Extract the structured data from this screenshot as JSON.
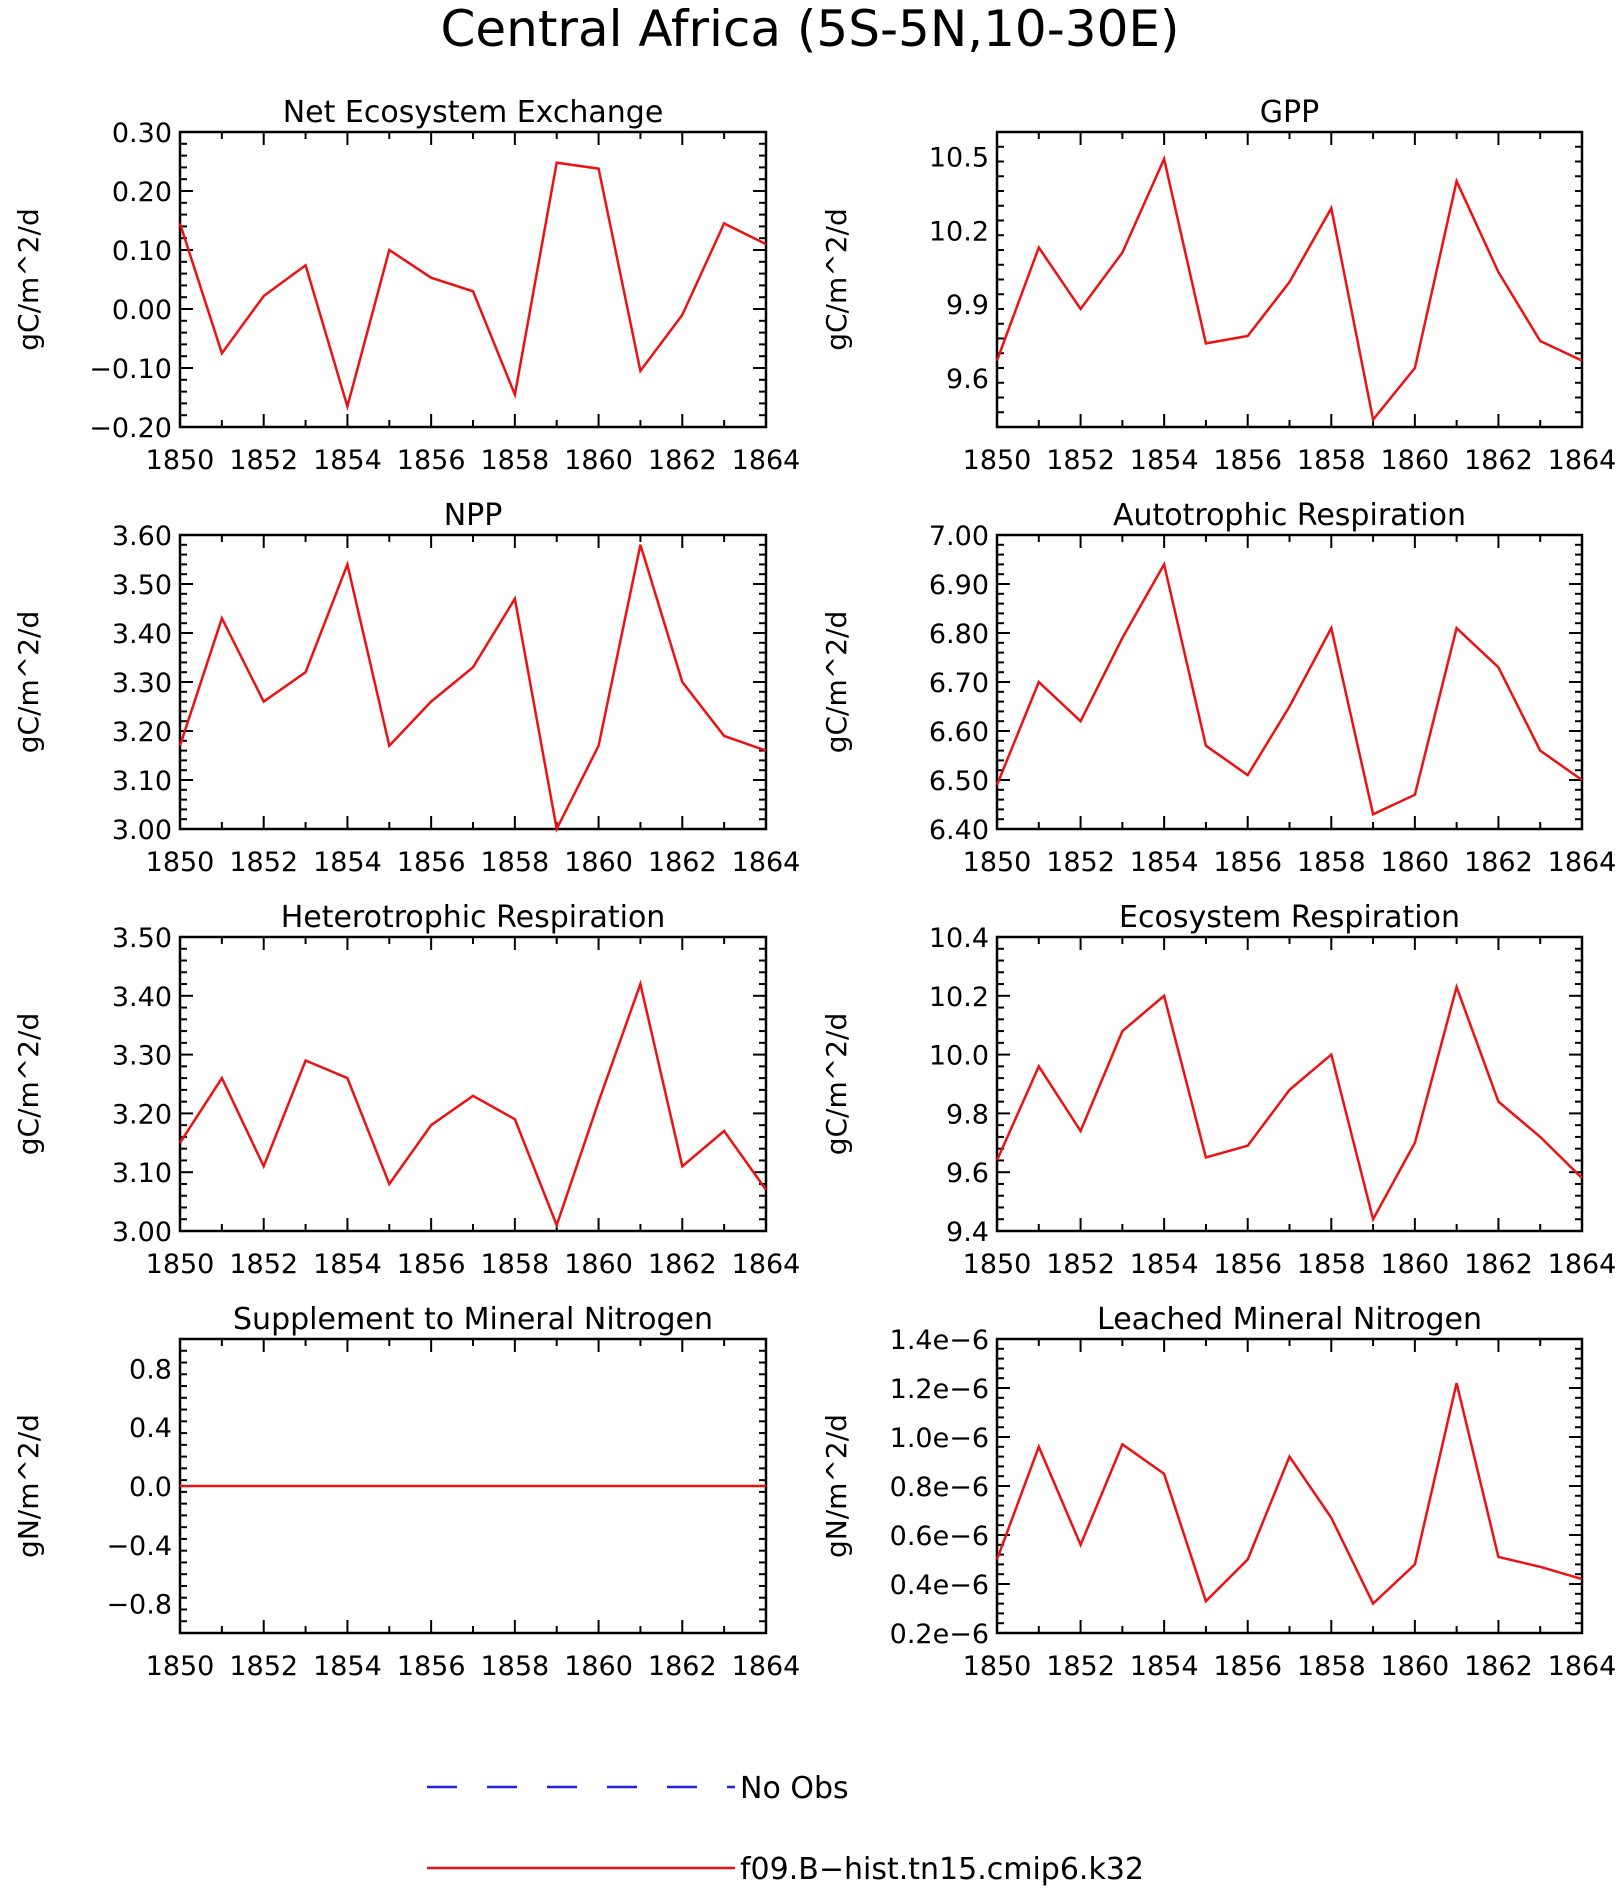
{
  "title": "Central Africa (5S-5N,10-30E)",
  "legend": [
    {
      "label": "No Obs",
      "color": "#2222dd",
      "dash": true
    },
    {
      "label": "f09.B-hist.tn15.cmip6.k32",
      "color": "#ee1111",
      "dash": false
    }
  ],
  "chart_data": [
    {
      "type": "line",
      "title": "Net Ecosystem Exchange",
      "ylabel": "gC/m^2/d",
      "xlim": [
        1850,
        1864
      ],
      "ylim": [
        -0.2,
        0.3
      ],
      "xticks": [
        "1850",
        "1852",
        "1854",
        "1856",
        "1858",
        "1860",
        "1862",
        "1864"
      ],
      "yticks": [
        "-0.20",
        "-0.10",
        "0.00",
        "0.10",
        "0.20",
        "0.30"
      ],
      "yticks_num": [
        -0.2,
        -0.1,
        0,
        0.1,
        0.2,
        0.3
      ],
      "x": [
        1850,
        1851,
        1852,
        1853,
        1854,
        1855,
        1856,
        1857,
        1858,
        1859,
        1860,
        1861,
        1862,
        1863,
        1864
      ],
      "series": [
        {
          "name": "f09.B-hist.tn15.cmip6.k32",
          "values": [
            0.145,
            -0.075,
            0.022,
            0.074,
            -0.165,
            0.1,
            0.053,
            0.03,
            -0.145,
            0.248,
            0.238,
            -0.105,
            -0.01,
            0.145,
            0.11
          ]
        }
      ]
    },
    {
      "type": "line",
      "title": "GPP",
      "ylabel": "gC/m^2/d",
      "xlim": [
        1850,
        1864
      ],
      "ylim": [
        9.4,
        10.6
      ],
      "xticks": [
        "1850",
        "1852",
        "1854",
        "1856",
        "1858",
        "1860",
        "1862",
        "1864"
      ],
      "yticks": [
        "9.6",
        "9.9",
        "10.2",
        "10.5"
      ],
      "yticks_num": [
        9.6,
        9.9,
        10.2,
        10.5
      ],
      "x": [
        1850,
        1851,
        1852,
        1853,
        1854,
        1855,
        1856,
        1857,
        1858,
        1859,
        1860,
        1861,
        1862,
        1863,
        1864
      ],
      "series": [
        {
          "name": "f09.B-hist.tn15.cmip6.k32",
          "values": [
            9.67,
            10.13,
            9.88,
            10.11,
            10.49,
            9.74,
            9.77,
            9.99,
            10.29,
            9.43,
            9.64,
            10.4,
            10.03,
            9.75,
            9.67
          ]
        }
      ]
    },
    {
      "type": "line",
      "title": "NPP",
      "ylabel": "gC/m^2/d",
      "xlim": [
        1850,
        1864
      ],
      "ylim": [
        3.0,
        3.6
      ],
      "xticks": [
        "1850",
        "1852",
        "1854",
        "1856",
        "1858",
        "1860",
        "1862",
        "1864"
      ],
      "yticks": [
        "3.00",
        "3.10",
        "3.20",
        "3.30",
        "3.40",
        "3.50",
        "3.60"
      ],
      "yticks_num": [
        3.0,
        3.1,
        3.2,
        3.3,
        3.4,
        3.5,
        3.6
      ],
      "x": [
        1850,
        1851,
        1852,
        1853,
        1854,
        1855,
        1856,
        1857,
        1858,
        1859,
        1860,
        1861,
        1862,
        1863,
        1864
      ],
      "series": [
        {
          "name": "f09.B-hist.tn15.cmip6.k32",
          "values": [
            3.17,
            3.43,
            3.26,
            3.32,
            3.54,
            3.17,
            3.26,
            3.33,
            3.47,
            3.0,
            3.17,
            3.58,
            3.3,
            3.19,
            3.16
          ]
        }
      ]
    },
    {
      "type": "line",
      "title": "Autotrophic Respiration",
      "ylabel": "gC/m^2/d",
      "xlim": [
        1850,
        1864
      ],
      "ylim": [
        6.4,
        7.0
      ],
      "xticks": [
        "1850",
        "1852",
        "1854",
        "1856",
        "1858",
        "1860",
        "1862",
        "1864"
      ],
      "yticks": [
        "6.40",
        "6.50",
        "6.60",
        "6.70",
        "6.80",
        "6.90",
        "7.00"
      ],
      "yticks_num": [
        6.4,
        6.5,
        6.6,
        6.7,
        6.8,
        6.9,
        7.0
      ],
      "x": [
        1850,
        1851,
        1852,
        1853,
        1854,
        1855,
        1856,
        1857,
        1858,
        1859,
        1860,
        1861,
        1862,
        1863,
        1864
      ],
      "series": [
        {
          "name": "f09.B-hist.tn15.cmip6.k32",
          "values": [
            6.49,
            6.7,
            6.62,
            6.79,
            6.94,
            6.57,
            6.51,
            6.65,
            6.81,
            6.43,
            6.47,
            6.81,
            6.73,
            6.56,
            6.5
          ]
        }
      ]
    },
    {
      "type": "line",
      "title": "Heterotrophic Respiration",
      "ylabel": "gC/m^2/d",
      "xlim": [
        1850,
        1864
      ],
      "ylim": [
        3.0,
        3.5
      ],
      "xticks": [
        "1850",
        "1852",
        "1854",
        "1856",
        "1858",
        "1860",
        "1862",
        "1864"
      ],
      "yticks": [
        "3.00",
        "3.10",
        "3.20",
        "3.30",
        "3.40",
        "3.50"
      ],
      "yticks_num": [
        3.0,
        3.1,
        3.2,
        3.3,
        3.4,
        3.5
      ],
      "x": [
        1850,
        1851,
        1852,
        1853,
        1854,
        1855,
        1856,
        1857,
        1858,
        1859,
        1860,
        1861,
        1862,
        1863,
        1864
      ],
      "series": [
        {
          "name": "f09.B-hist.tn15.cmip6.k32",
          "values": [
            3.15,
            3.26,
            3.11,
            3.29,
            3.26,
            3.08,
            3.18,
            3.23,
            3.19,
            3.01,
            3.22,
            3.42,
            3.11,
            3.17,
            3.07
          ]
        }
      ]
    },
    {
      "type": "line",
      "title": "Ecosystem Respiration",
      "ylabel": "gC/m^2/d",
      "xlim": [
        1850,
        1864
      ],
      "ylim": [
        9.4,
        10.4
      ],
      "xticks": [
        "1850",
        "1852",
        "1854",
        "1856",
        "1858",
        "1860",
        "1862",
        "1864"
      ],
      "yticks": [
        "9.4",
        "9.6",
        "9.8",
        "10.0",
        "10.2",
        "10.4"
      ],
      "yticks_num": [
        9.4,
        9.6,
        9.8,
        10.0,
        10.2,
        10.4
      ],
      "x": [
        1850,
        1851,
        1852,
        1853,
        1854,
        1855,
        1856,
        1857,
        1858,
        1859,
        1860,
        1861,
        1862,
        1863,
        1864
      ],
      "series": [
        {
          "name": "f09.B-hist.tn15.cmip6.k32",
          "values": [
            9.64,
            9.96,
            9.74,
            10.08,
            10.2,
            9.65,
            9.69,
            9.88,
            10.0,
            9.44,
            9.7,
            10.23,
            9.84,
            9.72,
            9.58
          ]
        }
      ]
    },
    {
      "type": "line",
      "title": "Supplement to Mineral Nitrogen",
      "ylabel": "gN/m^2/d",
      "xlim": [
        1850,
        1864
      ],
      "ylim": [
        -1.0,
        1.0
      ],
      "xticks": [
        "1850",
        "1852",
        "1854",
        "1856",
        "1858",
        "1860",
        "1862",
        "1864"
      ],
      "yticks": [
        "-0.8",
        "-0.4",
        "0.0",
        "0.4",
        "0.8"
      ],
      "yticks_num": [
        -0.8,
        -0.4,
        0.0,
        0.4,
        0.8
      ],
      "x": [
        1850,
        1851,
        1852,
        1853,
        1854,
        1855,
        1856,
        1857,
        1858,
        1859,
        1860,
        1861,
        1862,
        1863,
        1864
      ],
      "series": [
        {
          "name": "f09.B-hist.tn15.cmip6.k32",
          "values": [
            0,
            0,
            0,
            0,
            0,
            0,
            0,
            0,
            0,
            0,
            0,
            0,
            0,
            0,
            0
          ]
        }
      ]
    },
    {
      "type": "line",
      "title": "Leached Mineral Nitrogen",
      "ylabel": "gN/m^2/d",
      "xlim": [
        1850,
        1864
      ],
      "ylim": [
        2e-07,
        1.4e-06
      ],
      "xticks": [
        "1850",
        "1852",
        "1854",
        "1856",
        "1858",
        "1860",
        "1862",
        "1864"
      ],
      "yticks": [
        "0.2e-6",
        "0.4e-6",
        "0.6e-6",
        "0.8e-6",
        "1.0e-6",
        "1.2e-6",
        "1.4e-6"
      ],
      "yticks_num": [
        2e-07,
        4e-07,
        6e-07,
        8e-07,
        1e-06,
        1.2e-06,
        1.4e-06
      ],
      "x": [
        1850,
        1851,
        1852,
        1853,
        1854,
        1855,
        1856,
        1857,
        1858,
        1859,
        1860,
        1861,
        1862,
        1863,
        1864
      ],
      "series": [
        {
          "name": "f09.B-hist.tn15.cmip6.k32",
          "values": [
            5e-07,
            9.6e-07,
            5.6e-07,
            9.7e-07,
            8.5e-07,
            3.3e-07,
            5e-07,
            9.2e-07,
            6.7e-07,
            3.2e-07,
            4.8e-07,
            1.22e-06,
            5.1e-07,
            4.7e-07,
            4.2e-07
          ]
        }
      ]
    }
  ]
}
